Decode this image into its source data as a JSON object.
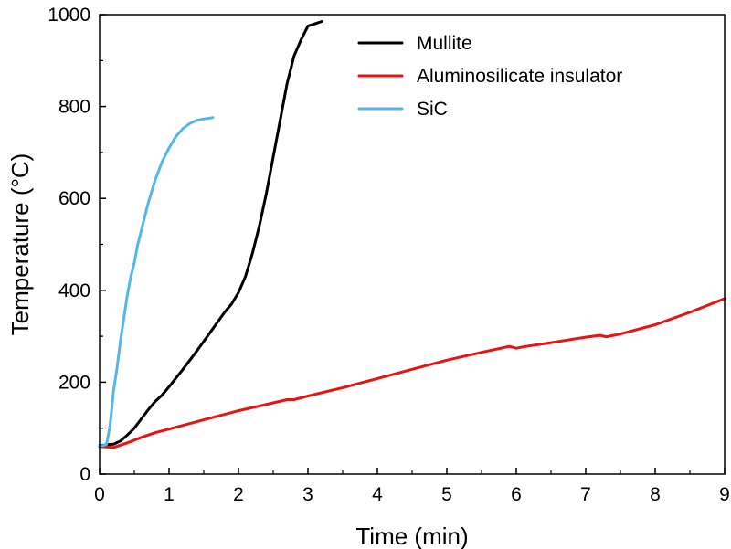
{
  "chart_data": {
    "type": "line",
    "xlabel": "Time (min)",
    "ylabel": "Temperature (°C)",
    "xlim": [
      0,
      9
    ],
    "ylim": [
      0,
      1000
    ],
    "xticks": [
      0,
      1,
      2,
      3,
      4,
      5,
      6,
      7,
      8,
      9
    ],
    "yticks": [
      0,
      200,
      400,
      600,
      800,
      1000
    ],
    "xtick_labels": [
      "0",
      "1",
      "2",
      "3",
      "4",
      "5",
      "6",
      "7",
      "8",
      "9"
    ],
    "ytick_labels": [
      "0",
      "200",
      "400",
      "600",
      "800",
      "1000"
    ],
    "grid": false,
    "legend_position": "top-right",
    "series": [
      {
        "name": "Mullite",
        "color": "#000000",
        "x": [
          0,
          0.1,
          0.2,
          0.3,
          0.4,
          0.5,
          0.6,
          0.7,
          0.8,
          0.9,
          1.0,
          1.2,
          1.4,
          1.6,
          1.8,
          1.9,
          2.0,
          2.1,
          2.2,
          2.3,
          2.4,
          2.5,
          2.6,
          2.7,
          2.8,
          2.9,
          3.0,
          3.1,
          3.2
        ],
        "y": [
          62,
          64,
          65,
          72,
          85,
          100,
          120,
          140,
          158,
          172,
          190,
          228,
          268,
          310,
          352,
          370,
          395,
          430,
          480,
          540,
          610,
          690,
          770,
          850,
          910,
          945,
          975,
          980,
          985
        ]
      },
      {
        "name": "Aluminosilicate insulator",
        "color": "#e8140f",
        "x": [
          0,
          0.2,
          0.4,
          0.6,
          0.8,
          1.0,
          1.5,
          2.0,
          2.5,
          2.7,
          2.8,
          3.0,
          3.5,
          4.0,
          4.5,
          5.0,
          5.5,
          5.9,
          6.0,
          6.1,
          6.5,
          7.0,
          7.2,
          7.3,
          7.5,
          8.0,
          8.5,
          9.0
        ],
        "y": [
          60,
          58,
          68,
          80,
          90,
          98,
          118,
          138,
          155,
          162,
          162,
          170,
          188,
          208,
          228,
          248,
          265,
          278,
          274,
          277,
          286,
          298,
          302,
          299,
          305,
          325,
          352,
          382
        ]
      },
      {
        "name": "SiC",
        "color": "#55b6ea",
        "x": [
          0,
          0.05,
          0.1,
          0.15,
          0.2,
          0.25,
          0.3,
          0.35,
          0.4,
          0.45,
          0.5,
          0.55,
          0.6,
          0.65,
          0.7,
          0.8,
          0.9,
          1.0,
          1.1,
          1.2,
          1.3,
          1.4,
          1.5,
          1.6,
          1.63
        ],
        "y": [
          62,
          62,
          65,
          105,
          180,
          230,
          290,
          340,
          390,
          430,
          460,
          500,
          530,
          560,
          590,
          640,
          680,
          710,
          735,
          752,
          763,
          770,
          773,
          775,
          776
        ]
      }
    ]
  }
}
